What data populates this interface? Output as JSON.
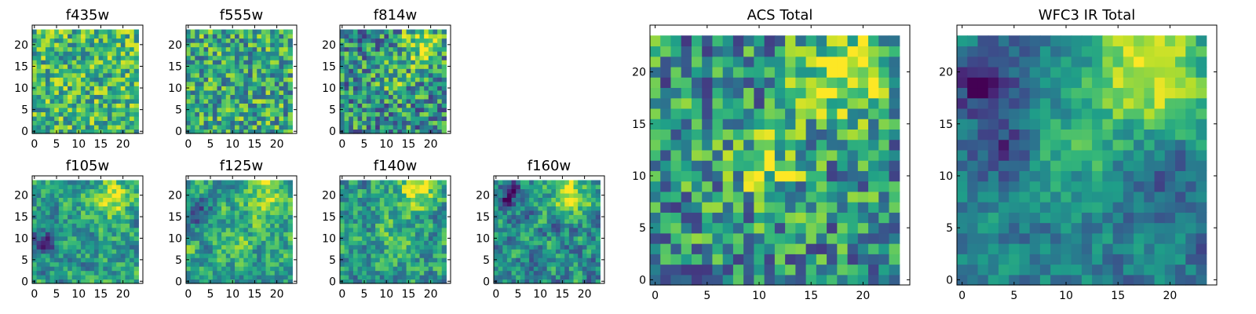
{
  "figure": {
    "colormap": "viridis",
    "colors": [
      "#440154",
      "#482878",
      "#3e4989",
      "#31688e",
      "#26828e",
      "#1f9e89",
      "#35b779",
      "#6ece58",
      "#b5de2b",
      "#fde725"
    ],
    "background": "#ffffff",
    "axes_color": "#000000"
  },
  "chart_data": [
    {
      "type": "heatmap",
      "title": "f435w",
      "grid": false,
      "xlim": [
        -0.5,
        24.5
      ],
      "ylim": [
        -0.5,
        24.5
      ],
      "xticks": [
        0,
        5,
        10,
        15,
        20
      ],
      "yticks": [
        0,
        5,
        10,
        15,
        20
      ],
      "n": 24,
      "seed": 11,
      "blur": 0,
      "base": 0.66,
      "noise": 0.3,
      "blobs": [],
      "holes": []
    },
    {
      "type": "heatmap",
      "title": "f555w",
      "grid": false,
      "xlim": [
        -0.5,
        24.5
      ],
      "ylim": [
        -0.5,
        24.5
      ],
      "xticks": [
        0,
        5,
        10,
        15,
        20
      ],
      "yticks": [
        0,
        5,
        10,
        15,
        20
      ],
      "n": 24,
      "seed": 23,
      "blur": 0,
      "base": 0.6,
      "noise": 0.32,
      "blobs": [],
      "holes": []
    },
    {
      "type": "heatmap",
      "title": "f814w",
      "grid": false,
      "xlim": [
        -0.5,
        24.5
      ],
      "ylim": [
        -0.5,
        24.5
      ],
      "xticks": [
        0,
        5,
        10,
        15,
        20
      ],
      "yticks": [
        0,
        5,
        10,
        15,
        20
      ],
      "n": 24,
      "seed": 37,
      "blur": 0,
      "base": 0.5,
      "noise": 0.34,
      "blobs": [
        [
          18,
          20,
          3,
          0.45
        ],
        [
          12,
          12,
          3,
          0.15
        ]
      ],
      "holes": []
    },
    {
      "type": "heatmap",
      "title": "f105w",
      "grid": false,
      "xlim": [
        -0.5,
        24.5
      ],
      "ylim": [
        -0.5,
        24.5
      ],
      "xticks": [
        0,
        5,
        10,
        15,
        20
      ],
      "yticks": [
        0,
        5,
        10,
        15,
        20
      ],
      "n": 24,
      "seed": 41,
      "blur": 1,
      "base": 0.55,
      "noise": 0.38,
      "blobs": [
        [
          17,
          19,
          3,
          0.4
        ]
      ],
      "holes": [
        [
          2,
          9,
          2,
          0.4
        ]
      ]
    },
    {
      "type": "heatmap",
      "title": "f125w",
      "grid": false,
      "xlim": [
        -0.5,
        24.5
      ],
      "ylim": [
        -0.5,
        24.5
      ],
      "xticks": [
        0,
        5,
        10,
        15,
        20
      ],
      "yticks": [
        0,
        5,
        10,
        15,
        20
      ],
      "n": 24,
      "seed": 53,
      "blur": 1,
      "base": 0.58,
      "noise": 0.38,
      "blobs": [
        [
          18,
          20,
          3,
          0.35
        ],
        [
          10,
          11,
          3,
          0.15
        ]
      ],
      "holes": [
        [
          2,
          16,
          2,
          0.5
        ]
      ]
    },
    {
      "type": "heatmap",
      "title": "f140w",
      "grid": false,
      "xlim": [
        -0.5,
        24.5
      ],
      "ylim": [
        -0.5,
        24.5
      ],
      "xticks": [
        0,
        5,
        10,
        15,
        20
      ],
      "yticks": [
        0,
        5,
        10,
        15,
        20
      ],
      "n": 24,
      "seed": 67,
      "blur": 1,
      "base": 0.55,
      "noise": 0.4,
      "blobs": [
        [
          17,
          20,
          3,
          0.4
        ],
        [
          12,
          12,
          3,
          0.15
        ]
      ],
      "holes": []
    },
    {
      "type": "heatmap",
      "title": "f160w",
      "grid": false,
      "xlim": [
        -0.5,
        24.5
      ],
      "ylim": [
        -0.5,
        24.5
      ],
      "xticks": [
        0,
        5,
        10,
        15,
        20
      ],
      "yticks": [
        0,
        5,
        10,
        15,
        20
      ],
      "n": 24,
      "seed": 79,
      "blur": 1,
      "base": 0.5,
      "noise": 0.42,
      "blobs": [
        [
          17,
          20,
          3,
          0.45
        ]
      ],
      "holes": [
        [
          3,
          20,
          2,
          0.4
        ]
      ]
    },
    {
      "type": "heatmap",
      "title": "ACS Total",
      "grid": false,
      "xlim": [
        -0.5,
        24.5
      ],
      "ylim": [
        -0.5,
        24.5
      ],
      "xticks": [
        0,
        5,
        10,
        15,
        20
      ],
      "yticks": [
        0,
        5,
        10,
        15,
        20
      ],
      "n": 24,
      "seed": 97,
      "blur": 0,
      "base": 0.5,
      "noise": 0.34,
      "blobs": [
        [
          18,
          20,
          3,
          0.5
        ],
        [
          11,
          11,
          2.5,
          0.3
        ]
      ],
      "holes": []
    },
    {
      "type": "heatmap",
      "title": "WFC3 IR Total",
      "grid": false,
      "xlim": [
        -0.5,
        24.5
      ],
      "ylim": [
        -0.5,
        24.5
      ],
      "xticks": [
        0,
        5,
        10,
        15,
        20
      ],
      "yticks": [
        0,
        5,
        10,
        15,
        20
      ],
      "n": 24,
      "seed": 113,
      "blur": 1,
      "base": 0.44,
      "noise": 0.28,
      "blobs": [
        [
          18,
          20,
          4,
          0.55
        ],
        [
          11,
          12,
          3,
          0.2
        ]
      ],
      "holes": [
        [
          2,
          19,
          2,
          0.45
        ],
        [
          4,
          13,
          2,
          0.3
        ],
        [
          20,
          10,
          2,
          0.2
        ]
      ]
    }
  ]
}
